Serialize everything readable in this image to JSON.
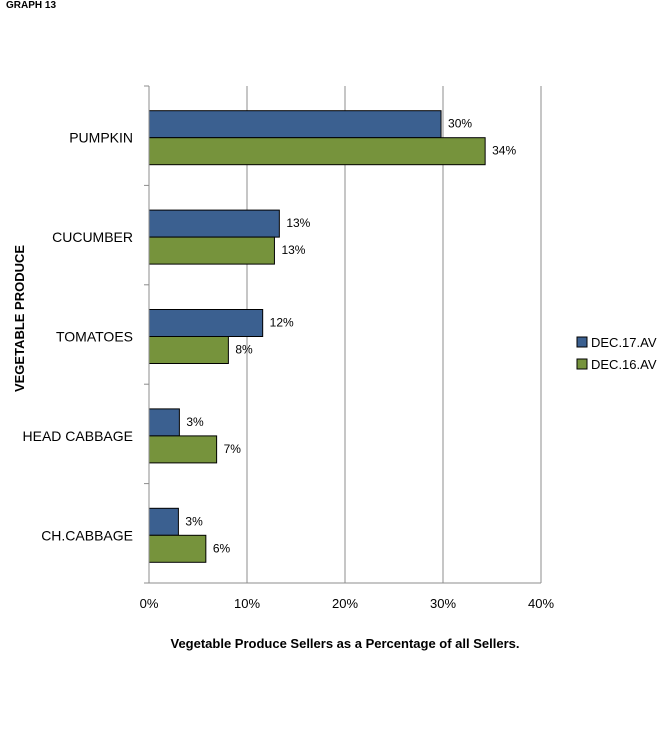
{
  "graph_label": "GRAPH 13",
  "chart_data": {
    "type": "bar",
    "orientation": "horizontal",
    "categories": [
      "PUMPKIN",
      "CUCUMBER",
      "TOMATOES",
      "HEAD CABBAGE",
      "CH.CABBAGE"
    ],
    "series": [
      {
        "name": "DEC.17.AV",
        "values": [
          30,
          13,
          12,
          3,
          3
        ],
        "labels": [
          "30%",
          "13%",
          "12%",
          "3%",
          "3%"
        ],
        "color": "#3b6090"
      },
      {
        "name": "DEC.16.AV",
        "values": [
          34,
          13,
          8,
          7,
          6
        ],
        "labels": [
          "34%",
          "13%",
          "8%",
          "7%",
          "6%"
        ],
        "color": "#76933c"
      }
    ],
    "bar_values_precise": [
      [
        29.8,
        13.3,
        11.6,
        3.1,
        3.0
      ],
      [
        34.3,
        12.8,
        8.1,
        6.9,
        5.8
      ]
    ],
    "xlim": [
      0,
      40
    ],
    "x_ticks": [
      "0%",
      "10%",
      "20%",
      "30%",
      "40%"
    ],
    "xlabel": "Vegetable Produce Sellers as a Percentage of all Sellers.",
    "ylabel": "VEGETABLE PRODUCE",
    "grid": "vertical",
    "legend_position": "right"
  }
}
